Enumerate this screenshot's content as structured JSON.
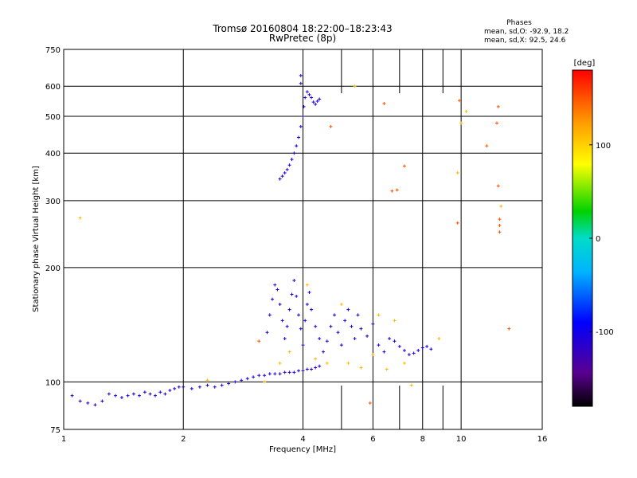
{
  "chart_data": {
    "type": "scatter",
    "title": "Tromsø 20160804 18:22:00–18:23:43",
    "subtitle": "RwPretec (8p)",
    "xlabel": "Frequency [MHz]",
    "ylabel": "Stationary phase Virtual Height [km]",
    "x_scale": "log",
    "y_scale": "log",
    "xlim": [
      1,
      16
    ],
    "ylim": [
      75,
      750
    ],
    "x_ticks": [
      1,
      2,
      4,
      6,
      8,
      10,
      16
    ],
    "x_tick_labels": [
      "1",
      "2",
      "4",
      "6",
      "8",
      "10",
      "16"
    ],
    "y_ticks": [
      75,
      100,
      200,
      300,
      400,
      500,
      600,
      750
    ],
    "y_tick_labels": [
      "75",
      "100",
      "200",
      "300",
      "400",
      "500",
      "600",
      "750"
    ],
    "grid": true,
    "phase_info": {
      "heading": "Phases",
      "line_o": "mean, sd,O:  -92.9, 18.2",
      "line_x": "mean, sd,X:  92.5, 24.6"
    },
    "colorbar": {
      "label": "[deg]",
      "range": [
        -180,
        180
      ],
      "ticks": [
        100,
        0,
        -100
      ],
      "tick_labels": [
        "100",
        "0",
        "-100"
      ],
      "colormap": "rainbow"
    },
    "series": [
      {
        "points": [
          [
            1.05,
            92
          ],
          [
            1.1,
            89
          ],
          [
            1.15,
            88
          ],
          [
            1.2,
            87
          ],
          [
            1.25,
            89
          ],
          [
            1.3,
            93
          ],
          [
            1.35,
            92
          ],
          [
            1.4,
            91
          ],
          [
            1.45,
            92
          ],
          [
            1.5,
            93
          ],
          [
            1.55,
            92
          ],
          [
            1.6,
            94
          ],
          [
            1.65,
            93
          ],
          [
            1.7,
            92
          ],
          [
            1.75,
            94
          ],
          [
            1.8,
            93
          ],
          [
            1.85,
            95
          ],
          [
            1.9,
            96
          ],
          [
            1.95,
            97
          ],
          [
            2.0,
            97
          ],
          [
            2.1,
            96
          ],
          [
            2.2,
            97
          ],
          [
            2.3,
            98
          ],
          [
            2.4,
            97
          ],
          [
            2.5,
            98
          ],
          [
            2.6,
            99
          ],
          [
            2.7,
            100
          ],
          [
            2.8,
            101
          ],
          [
            2.9,
            102
          ],
          [
            3.0,
            103
          ],
          [
            3.1,
            104
          ],
          [
            3.2,
            104
          ],
          [
            3.3,
            105
          ],
          [
            3.4,
            105
          ],
          [
            3.5,
            105
          ],
          [
            3.6,
            106
          ],
          [
            3.7,
            106
          ],
          [
            3.8,
            106
          ],
          [
            3.9,
            107
          ],
          [
            4.0,
            107
          ],
          [
            4.1,
            108
          ],
          [
            4.2,
            108
          ],
          [
            4.3,
            109
          ],
          [
            4.4,
            110
          ],
          [
            3.25,
            135
          ],
          [
            3.3,
            150
          ],
          [
            3.35,
            165
          ],
          [
            3.4,
            180
          ],
          [
            3.45,
            175
          ],
          [
            3.5,
            160
          ],
          [
            3.55,
            145
          ],
          [
            3.6,
            130
          ],
          [
            3.65,
            140
          ],
          [
            3.7,
            155
          ],
          [
            3.75,
            170
          ],
          [
            3.8,
            185
          ],
          [
            3.85,
            168
          ],
          [
            3.9,
            150
          ],
          [
            3.95,
            138
          ],
          [
            4.0,
            125
          ],
          [
            4.05,
            145
          ],
          [
            4.1,
            160
          ],
          [
            4.15,
            172
          ],
          [
            4.2,
            155
          ],
          [
            4.3,
            140
          ],
          [
            4.4,
            130
          ],
          [
            4.5,
            120
          ],
          [
            4.6,
            128
          ],
          [
            4.7,
            140
          ],
          [
            4.8,
            150
          ],
          [
            4.9,
            135
          ],
          [
            5.0,
            125
          ],
          [
            5.1,
            145
          ],
          [
            5.2,
            155
          ],
          [
            5.3,
            140
          ],
          [
            5.4,
            130
          ],
          [
            5.5,
            150
          ],
          [
            5.6,
            138
          ],
          [
            5.8,
            132
          ],
          [
            6.0,
            142
          ],
          [
            6.2,
            125
          ],
          [
            6.4,
            120
          ],
          [
            6.6,
            130
          ],
          [
            6.8,
            128
          ],
          [
            7.0,
            124
          ],
          [
            7.2,
            121
          ],
          [
            7.4,
            118
          ],
          [
            7.6,
            119
          ],
          [
            7.8,
            121
          ],
          [
            8.0,
            123
          ],
          [
            8.2,
            124
          ],
          [
            8.4,
            122
          ],
          [
            3.5,
            342
          ],
          [
            3.55,
            348
          ],
          [
            3.6,
            355
          ],
          [
            3.65,
            362
          ],
          [
            3.7,
            372
          ],
          [
            3.75,
            385
          ],
          [
            3.8,
            400
          ],
          [
            3.85,
            418
          ],
          [
            3.9,
            440
          ],
          [
            3.95,
            470
          ],
          [
            4.0,
            500
          ],
          [
            4.02,
            530
          ],
          [
            4.05,
            560
          ],
          [
            4.1,
            580
          ],
          [
            4.15,
            570
          ],
          [
            4.2,
            560
          ],
          [
            4.25,
            545
          ],
          [
            4.3,
            538
          ],
          [
            4.35,
            548
          ],
          [
            4.4,
            555
          ],
          [
            3.95,
            610
          ],
          [
            3.95,
            640
          ]
        ]
      },
      {
        "points": [
          [
            1.1,
            270
          ],
          [
            2.3,
            101
          ],
          [
            3.2,
            100
          ],
          [
            3.5,
            112
          ],
          [
            3.7,
            120
          ],
          [
            4.1,
            180
          ],
          [
            4.3,
            115
          ],
          [
            4.6,
            112
          ],
          [
            5.0,
            160
          ],
          [
            5.2,
            112
          ],
          [
            5.6,
            109
          ],
          [
            6.0,
            118
          ],
          [
            6.2,
            150
          ],
          [
            6.5,
            108
          ],
          [
            6.8,
            145
          ],
          [
            7.2,
            112
          ],
          [
            7.5,
            98
          ],
          [
            8.8,
            130
          ],
          [
            9.8,
            355
          ],
          [
            10.0,
            480
          ],
          [
            10.3,
            515
          ],
          [
            12.6,
            290
          ],
          [
            5.4,
            600
          ]
        ]
      },
      {
        "points": [
          [
            3.1,
            128
          ],
          [
            4.7,
            470
          ],
          [
            5.9,
            88
          ],
          [
            6.4,
            540
          ],
          [
            6.7,
            318
          ],
          [
            6.9,
            320
          ],
          [
            7.2,
            370
          ],
          [
            9.8,
            262
          ],
          [
            9.9,
            550
          ],
          [
            11.6,
            418
          ],
          [
            12.3,
            480
          ],
          [
            12.4,
            530
          ],
          [
            12.5,
            268
          ],
          [
            12.5,
            258
          ],
          [
            12.5,
            248
          ],
          [
            12.4,
            328
          ],
          [
            13.2,
            138
          ]
        ]
      }
    ]
  }
}
